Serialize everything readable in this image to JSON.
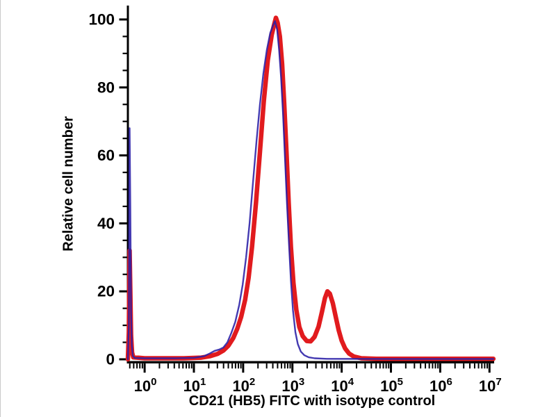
{
  "figure": {
    "background": "#ffffff",
    "axis_color": "#000000",
    "tick_label_color": "#000000"
  },
  "chart_data": {
    "type": "line",
    "subtype": "flow-cytometry-histogram-overlay",
    "title": "",
    "xlabel": "CD21 (HB5) FITC with isotype control",
    "ylabel": "Relative cell number",
    "x_scale": "log10",
    "x_range_log10": [
      -0.34,
      7.095
    ],
    "x_tick_exponents": [
      "0",
      "1",
      "2",
      "3",
      "4",
      "5",
      "6",
      "7"
    ],
    "x_tick_base": "10",
    "x_minor_ticks": "log decades 2-9",
    "ylim": [
      0,
      104
    ],
    "y_major_ticks": [
      0,
      20,
      40,
      60,
      80,
      100
    ],
    "y_tick_labels": [
      "0",
      "20",
      "40",
      "60",
      "80",
      "100"
    ],
    "y_minor_step": 5,
    "grid": false,
    "legend": false,
    "series": [
      {
        "name": "red-thick-curve (CD21 (HB5) FITC)",
        "color": "#e11b1e",
        "stroke_width": 6.5,
        "opacity": 1.0,
        "peaks": [
          {
            "x": 0.5,
            "y": 32,
            "note": "left-edge spike"
          },
          {
            "x": 460,
            "y": 100,
            "note": "main peak ~4.6e2"
          },
          {
            "x": 5100,
            "y": 20,
            "note": "secondary positive peak"
          }
        ],
        "points": [
          [
            -0.34,
            0
          ],
          [
            -0.32,
            8
          ],
          [
            -0.305,
            32
          ],
          [
            -0.29,
            20
          ],
          [
            -0.275,
            7
          ],
          [
            -0.255,
            2
          ],
          [
            -0.23,
            0.6
          ],
          [
            0.0,
            0.3
          ],
          [
            0.8,
            0.3
          ],
          [
            1.15,
            0.5
          ],
          [
            1.32,
            0.9
          ],
          [
            1.48,
            1.6
          ],
          [
            1.6,
            2.6
          ],
          [
            1.7,
            4
          ],
          [
            1.8,
            6.3
          ],
          [
            1.88,
            9
          ],
          [
            1.96,
            12.5
          ],
          [
            2.04,
            17.5
          ],
          [
            2.11,
            24
          ],
          [
            2.18,
            33
          ],
          [
            2.26,
            46
          ],
          [
            2.34,
            61
          ],
          [
            2.42,
            76
          ],
          [
            2.5,
            88
          ],
          [
            2.58,
            95.5
          ],
          [
            2.63,
            98.5
          ],
          [
            2.665,
            100.5
          ],
          [
            2.7,
            99
          ],
          [
            2.745,
            95
          ],
          [
            2.79,
            87
          ],
          [
            2.835,
            75
          ],
          [
            2.88,
            61
          ],
          [
            2.925,
            46
          ],
          [
            2.97,
            33
          ],
          [
            3.02,
            22.5
          ],
          [
            3.08,
            14.5
          ],
          [
            3.14,
            9.5
          ],
          [
            3.21,
            6.8
          ],
          [
            3.29,
            5.4
          ],
          [
            3.37,
            5.3
          ],
          [
            3.45,
            6.6
          ],
          [
            3.53,
            9.6
          ],
          [
            3.6,
            14
          ],
          [
            3.66,
            18
          ],
          [
            3.71,
            20
          ],
          [
            3.76,
            19.3
          ],
          [
            3.82,
            16.5
          ],
          [
            3.88,
            12.5
          ],
          [
            3.94,
            8.5
          ],
          [
            4.0,
            5.5
          ],
          [
            4.07,
            3.2
          ],
          [
            4.15,
            1.7
          ],
          [
            4.25,
            0.8
          ],
          [
            4.4,
            0.3
          ],
          [
            4.7,
            0.15
          ],
          [
            7.08,
            0.15
          ]
        ]
      },
      {
        "name": "blue-thin-curve (isotype control)",
        "color": "#2a1fa6",
        "stroke_width": 2.4,
        "opacity": 0.88,
        "peaks": [
          {
            "x": 0.5,
            "y": 68,
            "note": "left-edge spike"
          },
          {
            "x": 440,
            "y": 99.5,
            "note": "main peak ~4.4e2"
          }
        ],
        "points": [
          [
            -0.34,
            0
          ],
          [
            -0.32,
            10
          ],
          [
            -0.305,
            68
          ],
          [
            -0.29,
            45
          ],
          [
            -0.275,
            14
          ],
          [
            -0.26,
            4
          ],
          [
            -0.24,
            1
          ],
          [
            -0.2,
            0.4
          ],
          [
            0.0,
            0.3
          ],
          [
            0.6,
            0.3
          ],
          [
            1.0,
            0.45
          ],
          [
            1.2,
            0.9
          ],
          [
            1.32,
            1.7
          ],
          [
            1.42,
            2.5
          ],
          [
            1.52,
            2.9
          ],
          [
            1.6,
            3.5
          ],
          [
            1.68,
            5
          ],
          [
            1.76,
            7.8
          ],
          [
            1.84,
            11
          ],
          [
            1.92,
            16
          ],
          [
            1.99,
            22
          ],
          [
            2.06,
            30
          ],
          [
            2.13,
            40
          ],
          [
            2.2,
            52
          ],
          [
            2.27,
            64
          ],
          [
            2.34,
            75
          ],
          [
            2.41,
            84
          ],
          [
            2.48,
            91
          ],
          [
            2.55,
            96
          ],
          [
            2.6,
            98
          ],
          [
            2.645,
            99.5
          ],
          [
            2.69,
            97
          ],
          [
            2.73,
            91
          ],
          [
            2.77,
            83
          ],
          [
            2.81,
            72
          ],
          [
            2.85,
            59
          ],
          [
            2.89,
            46
          ],
          [
            2.93,
            34
          ],
          [
            2.97,
            23
          ],
          [
            3.01,
            14.5
          ],
          [
            3.06,
            8
          ],
          [
            3.11,
            4.5
          ],
          [
            3.17,
            2.3
          ],
          [
            3.24,
            1.2
          ],
          [
            3.33,
            0.6
          ],
          [
            3.45,
            0.3
          ],
          [
            3.7,
            0.15
          ],
          [
            5.0,
            0.1
          ],
          [
            7.08,
            0.1
          ]
        ]
      }
    ]
  }
}
